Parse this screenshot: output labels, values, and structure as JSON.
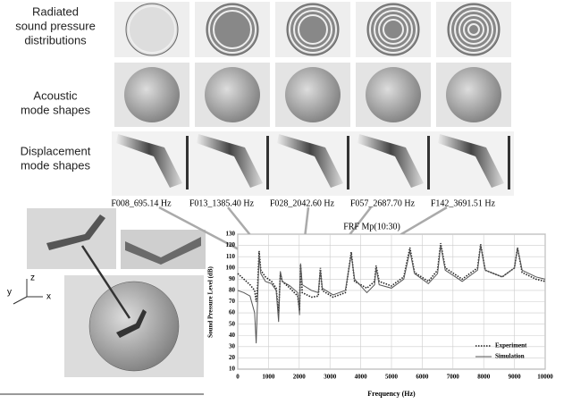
{
  "row_labels": [
    [
      "Radiated",
      "sound pressure",
      "distributions"
    ],
    [
      "Acoustic",
      "mode shapes"
    ],
    [
      "Displacement",
      "mode shapes"
    ]
  ],
  "mode_labels": [
    "F008_695.14 Hz",
    "F013_1385.40 Hz",
    "F028_2042.60 Hz",
    "F057_2687.70 Hz",
    "F142_3691.51 Hz"
  ],
  "axis_triad": [
    "z",
    "y",
    "x"
  ],
  "chart_data": {
    "type": "line",
    "title": "FRF Mp(10:30)",
    "x_label": "Frequency (Hz)",
    "y_label": "Sound Pressure Level (dB)",
    "x": [
      0,
      200,
      400,
      550,
      600,
      650,
      695,
      750,
      900,
      1100,
      1250,
      1330,
      1385,
      1450,
      1700,
      1950,
      2010,
      2043,
      2100,
      2400,
      2620,
      2688,
      2750,
      3100,
      3500,
      3692,
      3800,
      4200,
      4450,
      4500,
      4600,
      5000,
      5400,
      5600,
      5750,
      6200,
      6500,
      6600,
      6750,
      7300,
      7800,
      7900,
      8050,
      8600,
      9000,
      9100,
      9250,
      9700,
      10000
    ],
    "series": [
      {
        "name": "Experiment",
        "color": "#222222",
        "dash": "dotted",
        "values": [
          95,
          90,
          85,
          80,
          70,
          85,
          115,
          98,
          92,
          88,
          82,
          60,
          95,
          88,
          82,
          75,
          62,
          103,
          78,
          74,
          75,
          100,
          80,
          74,
          78,
          114,
          88,
          82,
          88,
          102,
          88,
          84,
          92,
          118,
          96,
          88,
          98,
          122,
          100,
          90,
          100,
          121,
          98,
          92,
          100,
          118,
          96,
          90,
          88
        ]
      },
      {
        "name": "Simulation",
        "color": "#555555",
        "dash": "solid",
        "values": [
          80,
          78,
          75,
          60,
          33,
          75,
          112,
          95,
          88,
          86,
          80,
          52,
          97,
          88,
          84,
          78,
          58,
          104,
          85,
          80,
          78,
          98,
          82,
          76,
          80,
          112,
          90,
          78,
          85,
          100,
          85,
          82,
          90,
          115,
          95,
          86,
          95,
          120,
          98,
          88,
          98,
          120,
          98,
          92,
          100,
          118,
          98,
          92,
          90
        ]
      }
    ],
    "xlim": [
      0,
      10000
    ],
    "xticks": [
      0,
      1000,
      2000,
      3000,
      4000,
      5000,
      6000,
      7000,
      8000,
      9000,
      10000
    ],
    "ylim": [
      10,
      130
    ],
    "yticks": [
      10,
      20,
      30,
      40,
      50,
      60,
      70,
      80,
      90,
      100,
      110,
      120,
      130
    ],
    "grid": true,
    "legend": "lower right"
  }
}
